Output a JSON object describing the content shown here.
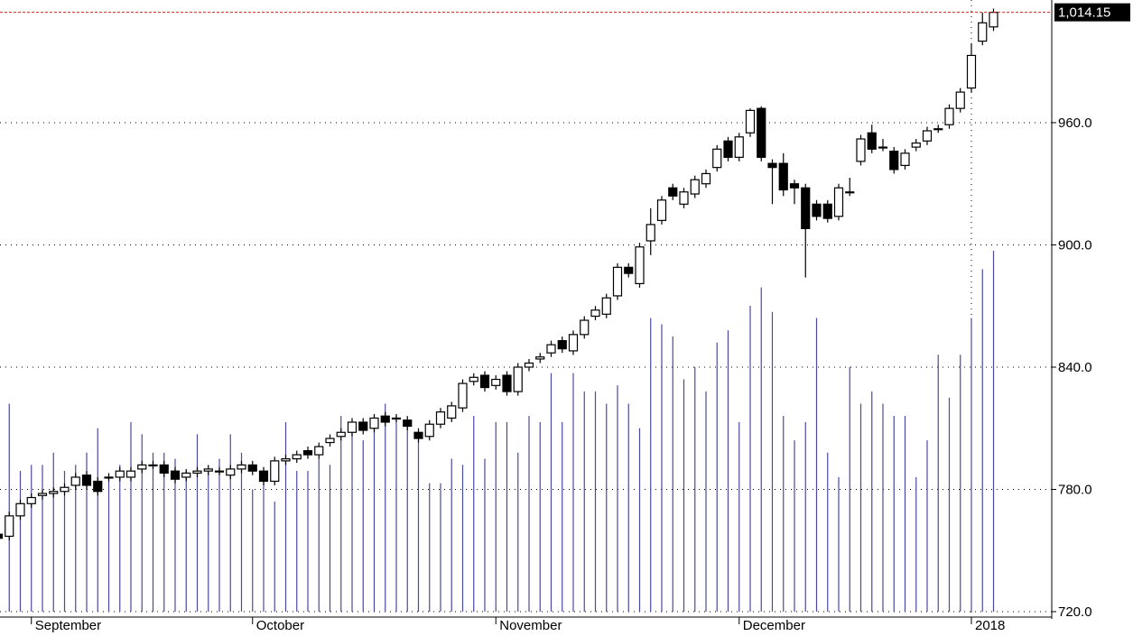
{
  "chart_data": {
    "type": "candlestick",
    "open": [
      758,
      757,
      767,
      773,
      777,
      778,
      779,
      782,
      787,
      784,
      786,
      786,
      786,
      790,
      792,
      792,
      789,
      786,
      788,
      789,
      789,
      787,
      790,
      792,
      789,
      784,
      794,
      795,
      799,
      797,
      803,
      806,
      808,
      813,
      810,
      816,
      815,
      814,
      808,
      806,
      812,
      815,
      820,
      833,
      836,
      831,
      836,
      828,
      840,
      844,
      847,
      853,
      848,
      856,
      865,
      866,
      875,
      889,
      881,
      902,
      912,
      928,
      920,
      925,
      930,
      938,
      951,
      943,
      955,
      967,
      940,
      940,
      930,
      928,
      920,
      920,
      914,
      926,
      941,
      955,
      948,
      946,
      939,
      948,
      951,
      957,
      959,
      967,
      977,
      1000,
      1007
    ],
    "high": [
      760,
      769,
      775,
      778,
      780,
      781,
      783,
      788,
      789,
      786,
      788,
      791,
      791,
      794,
      794,
      794,
      791,
      790,
      791,
      792,
      791,
      792,
      794,
      794,
      791,
      796,
      797,
      799,
      801,
      803,
      807,
      810,
      815,
      815,
      817,
      818,
      817,
      816,
      810,
      814,
      820,
      823,
      834,
      837,
      838,
      836,
      838,
      842,
      844,
      847,
      853,
      855,
      858,
      865,
      870,
      876,
      891,
      891,
      901,
      918,
      924,
      930,
      928,
      934,
      937,
      949,
      953,
      955,
      967,
      968,
      942,
      945,
      932,
      930,
      922,
      922,
      930,
      933,
      954,
      959,
      952,
      948,
      947,
      952,
      958,
      959,
      969,
      977,
      999,
      1014,
      1016
    ],
    "low": [
      754,
      755,
      765,
      771,
      775,
      776,
      777,
      780,
      780,
      777,
      784,
      784,
      784,
      788,
      790,
      786,
      783,
      784,
      786,
      787,
      787,
      785,
      788,
      787,
      782,
      782,
      792,
      793,
      795,
      795,
      801,
      804,
      806,
      807,
      808,
      811,
      813,
      809,
      803,
      804,
      810,
      813,
      818,
      831,
      828,
      829,
      826,
      826,
      838,
      842,
      845,
      847,
      846,
      854,
      863,
      864,
      873,
      884,
      879,
      895,
      910,
      922,
      918,
      923,
      928,
      936,
      941,
      941,
      953,
      941,
      920,
      924,
      920,
      884,
      912,
      911,
      912,
      924,
      939,
      945,
      946,
      935,
      937,
      946,
      949,
      955,
      957,
      965,
      975,
      998,
      1005
    ],
    "close": [
      756,
      767,
      773,
      776,
      778,
      779,
      781,
      786,
      782,
      779,
      786,
      789,
      789,
      792,
      792,
      788,
      785,
      788,
      789,
      790,
      789,
      790,
      792,
      789,
      784,
      794,
      795,
      797,
      797,
      801,
      805,
      808,
      813,
      809,
      815,
      813,
      815,
      811,
      805,
      812,
      818,
      821,
      832,
      835,
      830,
      834,
      828,
      840,
      842,
      845,
      851,
      849,
      856,
      863,
      868,
      874,
      889,
      886,
      899,
      910,
      922,
      924,
      926,
      932,
      935,
      947,
      943,
      953,
      966,
      943,
      938,
      927,
      928,
      908,
      914,
      913,
      928,
      926,
      952,
      947,
      948,
      937,
      945,
      950,
      956,
      957,
      967,
      975,
      993,
      1009,
      1014.15
    ],
    "volume": [
      22,
      34,
      23,
      24,
      24,
      26,
      23,
      24,
      26,
      30,
      22,
      24,
      31,
      29,
      26,
      26,
      25,
      23,
      29,
      23,
      25,
      29,
      26,
      20,
      23,
      18,
      31,
      23,
      23,
      25,
      24,
      32,
      30,
      28,
      32,
      34,
      32,
      31,
      28,
      21,
      21,
      25,
      24,
      32,
      25,
      31,
      31,
      26,
      32,
      31,
      39,
      31,
      39,
      36,
      36,
      34,
      37,
      34,
      30,
      48,
      47,
      45,
      38,
      40,
      36,
      44,
      46,
      31,
      50,
      53,
      49,
      32,
      28,
      31,
      48,
      26,
      22,
      40,
      34,
      36,
      34,
      32,
      32,
      22,
      28,
      42,
      35,
      42,
      48,
      56,
      59
    ],
    "up_color": "#ffffff",
    "down_color": "#000000",
    "volume_color": "#4a4aa0",
    "ylim": [
      720,
      1020.2
    ],
    "yticks": [
      {
        "value": 720,
        "label": "720.0"
      },
      {
        "value": 780,
        "label": "780.0"
      },
      {
        "value": 840,
        "label": "840.0"
      },
      {
        "value": 900,
        "label": "900.0"
      },
      {
        "value": 960,
        "label": "960.0"
      }
    ],
    "y2lim": [
      0,
      100
    ],
    "xticks": [
      {
        "value": 3,
        "label": "September"
      },
      {
        "value": 23,
        "label": "October"
      },
      {
        "value": 45,
        "label": "November"
      },
      {
        "value": 67,
        "label": "December"
      },
      {
        "value": 88,
        "label": "2018"
      }
    ],
    "last_value": {
      "value": 1014.15,
      "label": "1,014.15"
    },
    "grid": true
  }
}
